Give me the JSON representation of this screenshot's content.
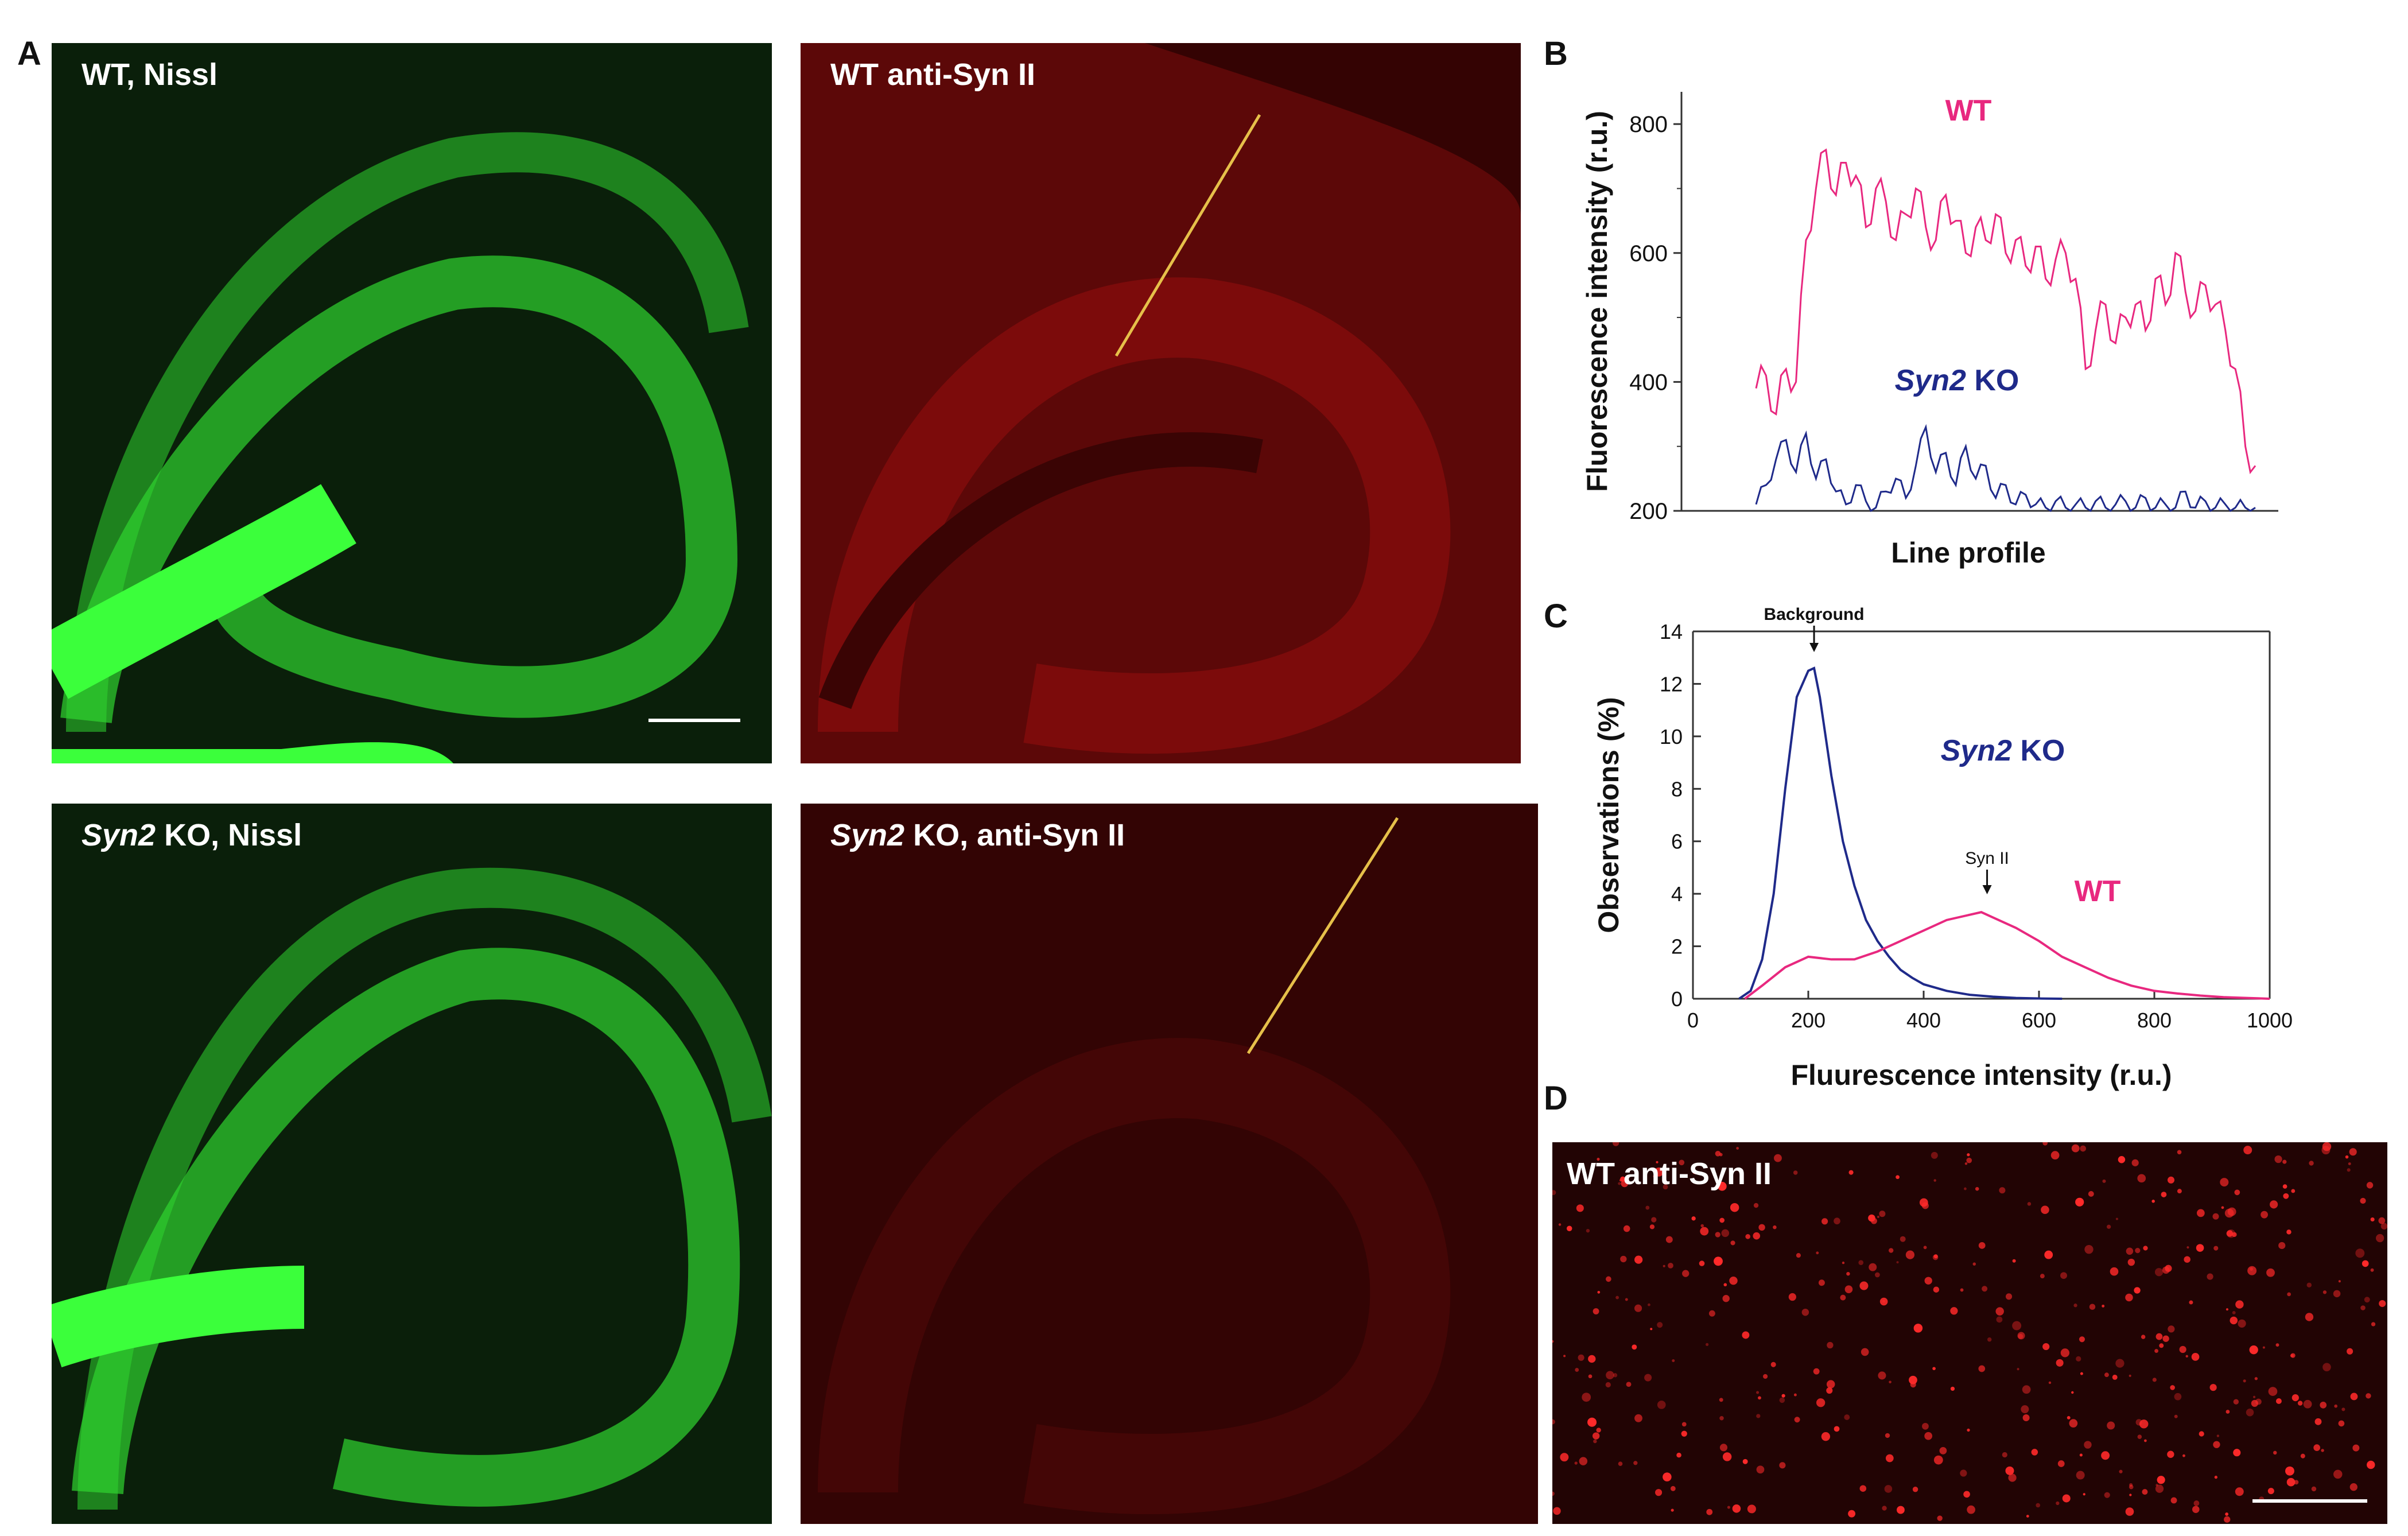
{
  "panel_letters": {
    "a": "A",
    "b": "B",
    "c": "C",
    "d": "D"
  },
  "micrographs": {
    "wt_nissl": {
      "label": "WT, Nissl",
      "color": "#2fd42f"
    },
    "wt_syn": {
      "label": "WT anti-Syn II",
      "color": "#7a0a0a"
    },
    "ko_nissl": {
      "label_italic": "Syn2",
      "label_rest": " KO, Nissl",
      "color": "#2fd42f"
    },
    "ko_syn": {
      "label_italic": "Syn2",
      "label_rest": " KO, anti-Syn II",
      "color": "#3a0606"
    },
    "wt_syn_zoom": {
      "label": "WT anti-Syn II",
      "color": "#ff2a2a"
    }
  },
  "colors": {
    "wt": "#e8287f",
    "ko": "#1f2a8a",
    "line_profile": "#e6c04a"
  },
  "chart_data": [
    {
      "panel": "B",
      "type": "line",
      "title": "",
      "ylabel": "Fluorescence intensity (r.u.)",
      "xlabel": "Line profile",
      "ylim": [
        200,
        850
      ],
      "yticks": [
        "200",
        "400",
        "600",
        "800"
      ],
      "xlim": [
        0,
        100
      ],
      "series": [
        {
          "name": "WT",
          "x": [
            0,
            2,
            4,
            6,
            8,
            10,
            12,
            14,
            16,
            18,
            20,
            22,
            24,
            26,
            28,
            30,
            32,
            34,
            36,
            38,
            40,
            42,
            44,
            46,
            48,
            50,
            52,
            54,
            56,
            58,
            60,
            62,
            64,
            66,
            68,
            70,
            72,
            74,
            76,
            78,
            80,
            82,
            84,
            86,
            88,
            90,
            92,
            94,
            96,
            98,
            100
          ],
          "values": [
            390,
            410,
            350,
            420,
            400,
            620,
            700,
            760,
            690,
            740,
            720,
            640,
            700,
            680,
            620,
            660,
            700,
            640,
            620,
            690,
            650,
            600,
            640,
            620,
            660,
            600,
            620,
            580,
            610,
            560,
            590,
            600,
            560,
            420,
            480,
            520,
            460,
            500,
            520,
            480,
            560,
            520,
            600,
            540,
            510,
            550,
            520,
            480,
            420,
            300,
            270
          ]
        },
        {
          "name": "Syn2 KO",
          "x": [
            0,
            2,
            4,
            6,
            8,
            10,
            12,
            14,
            16,
            18,
            20,
            22,
            24,
            26,
            28,
            30,
            32,
            34,
            36,
            38,
            40,
            42,
            44,
            46,
            48,
            50,
            52,
            54,
            56,
            58,
            60,
            62,
            64,
            66,
            68,
            70,
            72,
            74,
            76,
            78,
            80,
            82,
            84,
            86,
            88,
            90,
            92,
            94,
            96,
            98,
            100
          ],
          "values": [
            210,
            240,
            280,
            310,
            260,
            320,
            250,
            280,
            230,
            210,
            240,
            215,
            205,
            230,
            250,
            220,
            270,
            330,
            260,
            290,
            240,
            300,
            250,
            270,
            220,
            240,
            210,
            225,
            210,
            205,
            215,
            205,
            210,
            205,
            215,
            205,
            210,
            215,
            205,
            220,
            205,
            210,
            205,
            230,
            205,
            215,
            205,
            210,
            205,
            205,
            205
          ]
        }
      ],
      "annotations": [
        {
          "text": "WT",
          "color": "#e8287f"
        },
        {
          "text_italic": "Syn2",
          "text_rest": " KO",
          "color": "#1f2a8a"
        }
      ]
    },
    {
      "panel": "C",
      "type": "line",
      "title": "",
      "ylabel": "Observations (%)",
      "xlabel": "Fluurescence intensity (r.u.)",
      "xlim": [
        0,
        1000
      ],
      "ylim": [
        0,
        14
      ],
      "xticks": [
        "0",
        "200",
        "400",
        "600",
        "800",
        "1000"
      ],
      "yticks": [
        "0",
        "2",
        "4",
        "6",
        "8",
        "10",
        "12",
        "14"
      ],
      "series": [
        {
          "name": "Syn2 KO",
          "x": [
            80,
            100,
            120,
            140,
            160,
            180,
            200,
            210,
            220,
            240,
            260,
            280,
            300,
            320,
            340,
            360,
            380,
            400,
            440,
            480,
            520,
            560,
            600,
            640
          ],
          "values": [
            0,
            0.3,
            1.5,
            4,
            8,
            11.5,
            12.5,
            12.6,
            11.5,
            8.5,
            6,
            4.3,
            3,
            2.2,
            1.6,
            1.1,
            0.8,
            0.55,
            0.3,
            0.15,
            0.08,
            0.03,
            0.01,
            0
          ]
        },
        {
          "name": "WT",
          "x": [
            90,
            120,
            160,
            200,
            240,
            280,
            320,
            360,
            400,
            440,
            480,
            500,
            520,
            560,
            600,
            640,
            680,
            720,
            760,
            800,
            840,
            880,
            920,
            960,
            1000
          ],
          "values": [
            0,
            0.5,
            1.2,
            1.6,
            1.5,
            1.5,
            1.8,
            2.2,
            2.6,
            3.0,
            3.2,
            3.3,
            3.1,
            2.7,
            2.2,
            1.6,
            1.2,
            0.8,
            0.5,
            0.3,
            0.2,
            0.12,
            0.06,
            0.03,
            0
          ]
        }
      ],
      "annotations": [
        {
          "text": "Background",
          "x": 210
        },
        {
          "text": "Syn II",
          "x": 510
        },
        {
          "text_italic": "Syn2",
          "text_rest": " KO",
          "color": "#1f2a8a"
        },
        {
          "text": "WT",
          "color": "#e8287f"
        }
      ]
    }
  ]
}
